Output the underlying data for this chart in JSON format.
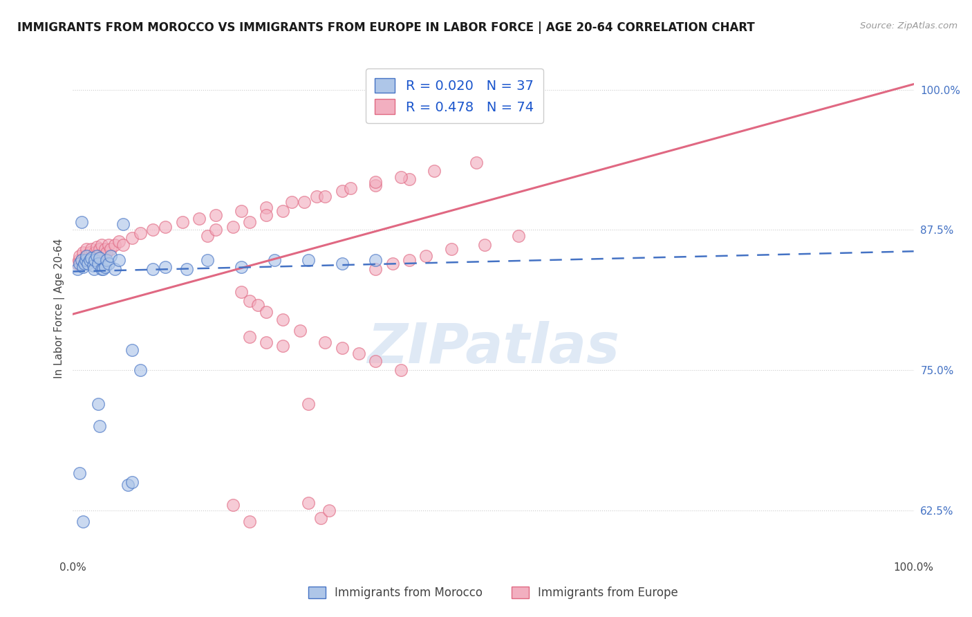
{
  "title": "IMMIGRANTS FROM MOROCCO VS IMMIGRANTS FROM EUROPE IN LABOR FORCE | AGE 20-64 CORRELATION CHART",
  "source": "Source: ZipAtlas.com",
  "ylabel": "In Labor Force | Age 20-64",
  "ytick_labels": [
    "62.5%",
    "75.0%",
    "87.5%",
    "100.0%"
  ],
  "ytick_values": [
    0.625,
    0.75,
    0.875,
    1.0
  ],
  "xlim": [
    0.0,
    1.0
  ],
  "ylim": [
    0.585,
    1.025
  ],
  "legend_r_blue": "0.020",
  "legend_n_blue": "37",
  "legend_r_pink": "0.478",
  "legend_n_pink": "74",
  "legend_label_blue": "Immigrants from Morocco",
  "legend_label_pink": "Immigrants from Europe",
  "blue_fill": "#aec6e8",
  "pink_fill": "#f2afc0",
  "blue_edge": "#4472c4",
  "pink_edge": "#e06882",
  "blue_line_color": "#4472c4",
  "pink_line_color": "#e06882",
  "r_n_color": "#1a55cc",
  "background_color": "#ffffff",
  "watermark": "ZIPatlas",
  "blue_x": [
    0.005,
    0.008,
    0.01,
    0.012,
    0.014,
    0.015,
    0.016,
    0.018,
    0.02,
    0.022,
    0.024,
    0.025,
    0.026,
    0.028,
    0.03,
    0.032,
    0.034,
    0.036,
    0.038,
    0.04,
    0.042,
    0.045,
    0.05,
    0.055,
    0.06,
    0.07,
    0.08,
    0.095,
    0.11,
    0.135,
    0.16,
    0.2,
    0.24,
    0.28,
    0.32,
    0.36,
    0.01
  ],
  "blue_y": [
    0.84,
    0.845,
    0.848,
    0.842,
    0.845,
    0.848,
    0.852,
    0.845,
    0.848,
    0.85,
    0.843,
    0.84,
    0.848,
    0.852,
    0.845,
    0.85,
    0.84,
    0.84,
    0.842,
    0.848,
    0.845,
    0.852,
    0.84,
    0.848,
    0.88,
    0.768,
    0.75,
    0.84,
    0.842,
    0.84,
    0.848,
    0.842,
    0.848,
    0.848,
    0.845,
    0.848,
    0.882
  ],
  "blue_outlier_x": [
    0.008,
    0.012,
    0.03,
    0.032,
    0.065,
    0.07
  ],
  "blue_outlier_y": [
    0.658,
    0.615,
    0.72,
    0.7,
    0.648,
    0.65
  ],
  "pink_x": [
    0.005,
    0.007,
    0.008,
    0.01,
    0.012,
    0.014,
    0.015,
    0.016,
    0.018,
    0.02,
    0.022,
    0.024,
    0.025,
    0.026,
    0.028,
    0.03,
    0.032,
    0.034,
    0.036,
    0.038,
    0.04,
    0.042,
    0.045,
    0.05,
    0.055,
    0.06,
    0.07,
    0.08,
    0.095,
    0.11,
    0.13,
    0.15,
    0.17,
    0.2,
    0.23,
    0.26,
    0.29,
    0.32,
    0.36,
    0.4,
    0.16,
    0.17,
    0.19,
    0.21,
    0.23,
    0.25,
    0.275,
    0.3,
    0.33,
    0.36,
    0.39,
    0.43,
    0.48,
    0.36,
    0.38,
    0.4,
    0.42,
    0.45,
    0.49,
    0.53,
    0.21,
    0.23,
    0.25,
    0.2,
    0.21,
    0.22,
    0.23,
    0.25,
    0.27,
    0.3,
    0.32,
    0.34,
    0.36,
    0.39
  ],
  "pink_y": [
    0.845,
    0.848,
    0.852,
    0.848,
    0.855,
    0.848,
    0.852,
    0.858,
    0.848,
    0.855,
    0.858,
    0.852,
    0.848,
    0.855,
    0.86,
    0.852,
    0.858,
    0.862,
    0.852,
    0.858,
    0.855,
    0.862,
    0.858,
    0.862,
    0.865,
    0.862,
    0.868,
    0.872,
    0.875,
    0.878,
    0.882,
    0.885,
    0.888,
    0.892,
    0.895,
    0.9,
    0.905,
    0.91,
    0.915,
    0.92,
    0.87,
    0.875,
    0.878,
    0.882,
    0.888,
    0.892,
    0.9,
    0.905,
    0.912,
    0.918,
    0.922,
    0.928,
    0.935,
    0.84,
    0.845,
    0.848,
    0.852,
    0.858,
    0.862,
    0.87,
    0.78,
    0.775,
    0.772,
    0.82,
    0.812,
    0.808,
    0.802,
    0.795,
    0.785,
    0.775,
    0.77,
    0.765,
    0.758,
    0.75
  ],
  "pink_outlier_x": [
    0.19,
    0.21,
    0.28,
    0.295,
    0.305,
    0.28
  ],
  "pink_outlier_y": [
    0.63,
    0.615,
    0.632,
    0.618,
    0.625,
    0.72
  ],
  "blue_line_x0": 0.0,
  "blue_line_y0": 0.838,
  "blue_line_x1": 1.0,
  "blue_line_y1": 0.856,
  "pink_line_x0": 0.0,
  "pink_line_y0": 0.8,
  "pink_line_x1": 1.0,
  "pink_line_y1": 1.005
}
